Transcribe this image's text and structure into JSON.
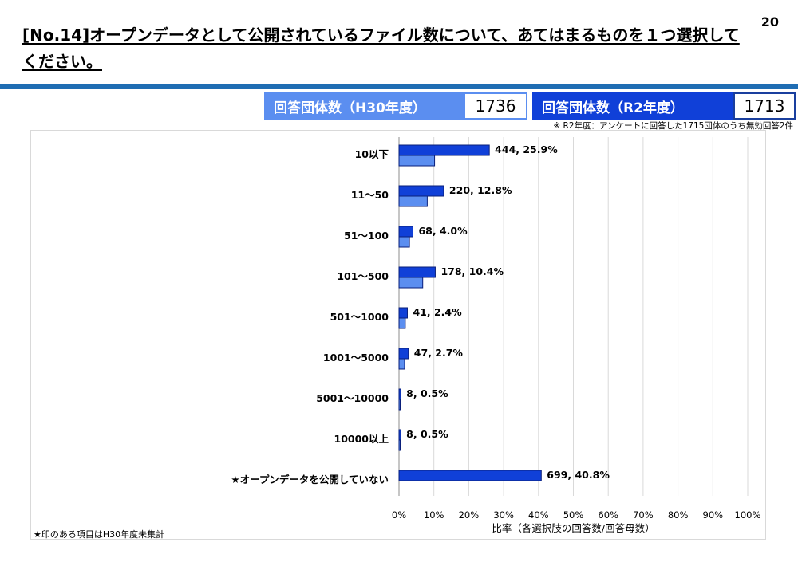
{
  "page": {
    "title": "[No.14]オープンデータとして公開されているファイル数について、あてはまるものを１つ選択してください。",
    "page_number": "20",
    "counts": {
      "h30_label": "回答団体数（H30年度）",
      "h30_value": "1736",
      "r2_label": "回答団体数（R2年度）",
      "r2_value": "1713"
    },
    "note": "※ R2年度：アンケートに回答した1715団体のうち無効回答2件",
    "footnote": "★印のある項目はH30年度未集計"
  },
  "colors": {
    "r2": "#1040d8",
    "h30": "#5b8ef0",
    "outline": "#0a1f7a"
  },
  "chart_data": {
    "type": "bar",
    "orientation": "horizontal",
    "categories": [
      "10以下",
      "11～50",
      "51～100",
      "101～500",
      "501～1000",
      "1001～5000",
      "5001～10000",
      "10000以上",
      "★オープンデータを公開していない"
    ],
    "series": [
      {
        "key": "r2",
        "values": [
          25.9,
          12.8,
          4.0,
          10.4,
          2.4,
          2.7,
          0.5,
          0.5,
          40.8
        ],
        "labels": [
          "444, 25.9%",
          "220, 12.8%",
          "68, 4.0%",
          "178, 10.4%",
          "41, 2.4%",
          "47, 2.7%",
          "8, 0.5%",
          "8, 0.5%",
          "699, 40.8%"
        ]
      },
      {
        "key": "h30",
        "values": [
          10.2,
          8.1,
          3.0,
          6.8,
          1.8,
          1.6,
          0.3,
          0.2,
          null
        ]
      }
    ],
    "xlabel": "比率（各選択肢の回答数/回答母数）",
    "xticks": [
      "0%",
      "10%",
      "20%",
      "30%",
      "40%",
      "50%",
      "60%",
      "70%",
      "80%",
      "90%",
      "100%"
    ],
    "xlim": [
      0,
      100
    ],
    "grid": true
  }
}
